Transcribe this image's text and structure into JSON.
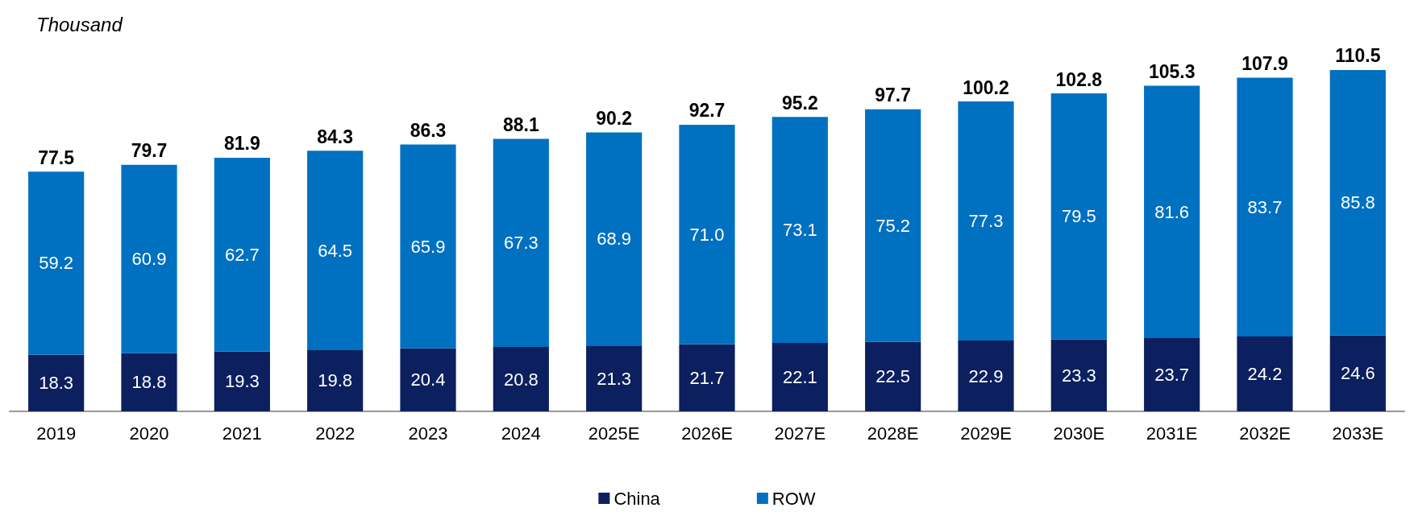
{
  "chart_data": {
    "type": "bar",
    "ylabel": "Thousand",
    "stacked": true,
    "data_labels": true,
    "legend": "bottom",
    "categories": [
      "2019",
      "2020",
      "2021",
      "2022",
      "2023",
      "2024",
      "2025E",
      "2026E",
      "2027E",
      "2028E",
      "2029E",
      "2030E",
      "2031E",
      "2032E",
      "2033E"
    ],
    "series": [
      {
        "name": "China",
        "color": "#0c1f5e",
        "values": [
          18.3,
          18.8,
          19.3,
          19.8,
          20.4,
          20.8,
          21.3,
          21.7,
          22.1,
          22.5,
          22.9,
          23.3,
          23.7,
          24.2,
          24.6
        ],
        "value_labels": [
          "18.3",
          "18.8",
          "19.3",
          "19.8",
          "20.4",
          "20.8",
          "21.3",
          "21.7",
          "22.1",
          "22.5",
          "22.9",
          "23.3",
          "23.7",
          "24.2",
          "24.6"
        ]
      },
      {
        "name": "ROW",
        "color": "#0070c0",
        "values": [
          59.2,
          60.9,
          62.7,
          64.5,
          65.9,
          67.3,
          68.9,
          71.0,
          73.1,
          75.2,
          77.3,
          79.5,
          81.6,
          83.7,
          85.8
        ],
        "value_labels": [
          "59.2",
          "60.9",
          "62.7",
          "64.5",
          "65.9",
          "67.3",
          "68.9",
          "71.0",
          "73.1",
          "75.2",
          "77.3",
          "79.5",
          "81.6",
          "83.7",
          "85.8"
        ]
      }
    ],
    "totals": [
      "77.5",
      "79.7",
      "81.9",
      "84.3",
      "86.3",
      "88.1",
      "90.2",
      "92.7",
      "95.2",
      "97.7",
      "100.2",
      "102.8",
      "105.3",
      "107.9",
      "110.5"
    ]
  }
}
